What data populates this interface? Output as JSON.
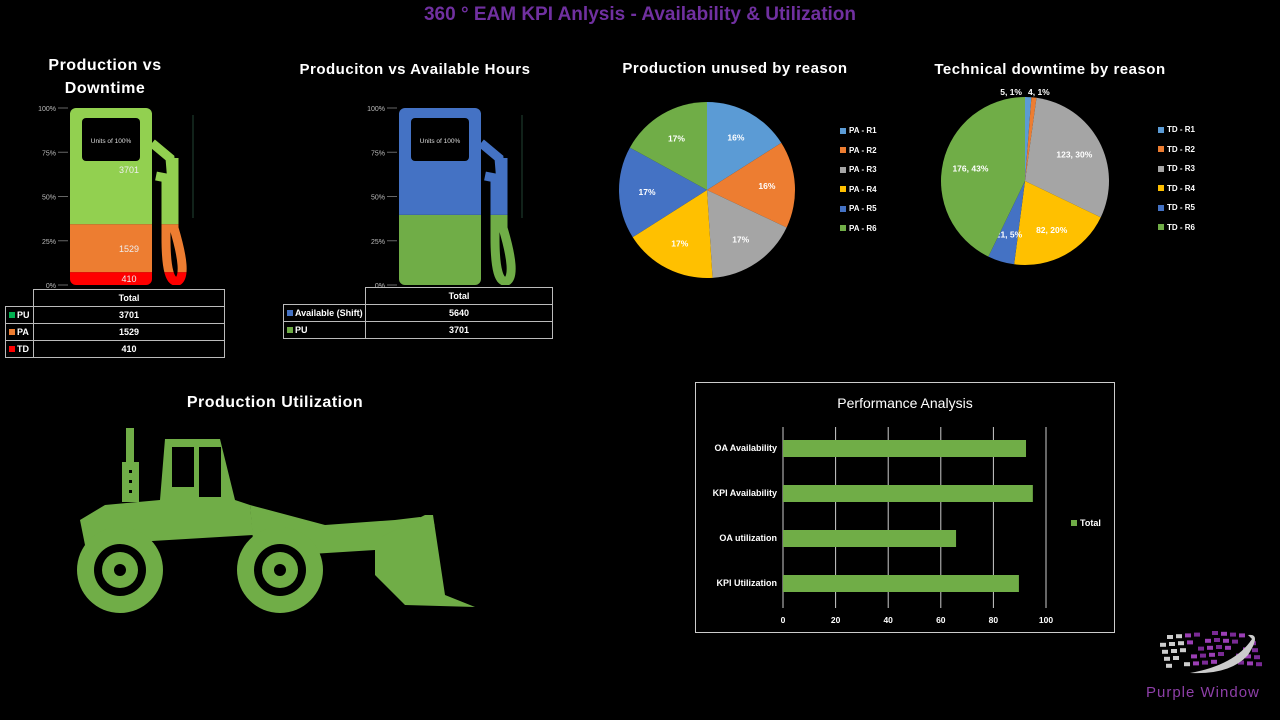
{
  "title": "360 ° EAM KPI Anlysis - Availability & Utilization",
  "gauge1": {
    "title_line1": "Production vs",
    "title_line2": "Downtime",
    "window_text": "Units of 100%",
    "ticks": [
      "100%",
      "75%",
      "50%",
      "25%",
      "0%"
    ],
    "table_header": "Total",
    "rows": [
      {
        "label": "PU",
        "value": 3701,
        "color": "#00b050"
      },
      {
        "label": "PA",
        "value": 1529,
        "color": "#ed7d31"
      },
      {
        "label": "TD",
        "value": 410,
        "color": "#ff0000"
      }
    ],
    "stack": [
      {
        "label": "TD",
        "value": 410,
        "color": "#ff0000"
      },
      {
        "label": "PA",
        "value": 1529,
        "color": "#ed7d31"
      },
      {
        "label": "PU",
        "value": 3701,
        "color": "#92d050"
      }
    ]
  },
  "gauge2": {
    "title": "Produciton vs Available Hours",
    "window_text": "Units of 100%",
    "ticks": [
      "100%",
      "75%",
      "50%",
      "25%",
      "0%"
    ],
    "table_header": "Total",
    "rows": [
      {
        "label": "Available (Shift)",
        "value": 5640,
        "color": "#4472c4"
      },
      {
        "label": "PU",
        "value": 3701,
        "color": "#70ad47"
      }
    ],
    "stack": [
      {
        "label": "PU",
        "value": 3701,
        "color": "#70ad47"
      },
      {
        "label": "Available (Shift)",
        "value": 5640,
        "color": "#4472c4"
      }
    ]
  },
  "chart_data": [
    {
      "type": "pie",
      "title": "Production unused by reason",
      "labels": [
        "PA - R1",
        "PA - R2",
        "PA - R3",
        "PA - R4",
        "PA - R5",
        "PA - R6"
      ],
      "values": [
        16,
        16,
        17,
        17,
        17,
        17
      ],
      "data_labels": [
        "16%",
        "16%",
        "17%",
        "17%",
        "17%",
        "17%"
      ],
      "colors": [
        "#5b9bd5",
        "#ed7d31",
        "#a5a5a5",
        "#ffc000",
        "#4472c4",
        "#70ad47"
      ],
      "legend": "right"
    },
    {
      "type": "pie",
      "title": "Technical downtime by reason",
      "labels": [
        "TD - R1",
        "TD - R2",
        "TD - R3",
        "TD - R4",
        "TD - R5",
        "TD - R6"
      ],
      "values": [
        5,
        4,
        123,
        82,
        21,
        176
      ],
      "data_labels": [
        "5, 1%",
        "4, 1%",
        "123, 30%",
        "82, 20%",
        "21, 5%",
        "176, 43%"
      ],
      "colors": [
        "#5b9bd5",
        "#ed7d31",
        "#a5a5a5",
        "#ffc000",
        "#4472c4",
        "#70ad47"
      ],
      "legend": "right"
    },
    {
      "type": "bar",
      "orientation": "horizontal",
      "title": "Performance Analysis",
      "categories": [
        "OA Availability",
        "KPI Availability",
        "OA utilization",
        "KPI Utilization"
      ],
      "series": [
        {
          "name": "Total",
          "values": [
            92.4,
            95,
            65.8,
            89.7
          ],
          "color": "#70ad47"
        }
      ],
      "xlim": [
        0,
        100
      ],
      "xticks": [
        "0",
        "20",
        "40",
        "60",
        "80",
        "100"
      ],
      "grid": true,
      "legend": "right"
    }
  ],
  "loader": {
    "title": "Production Utilization",
    "color": "#70ad47"
  },
  "logo": {
    "text": "Purple Window",
    "color": "#7030a0"
  }
}
